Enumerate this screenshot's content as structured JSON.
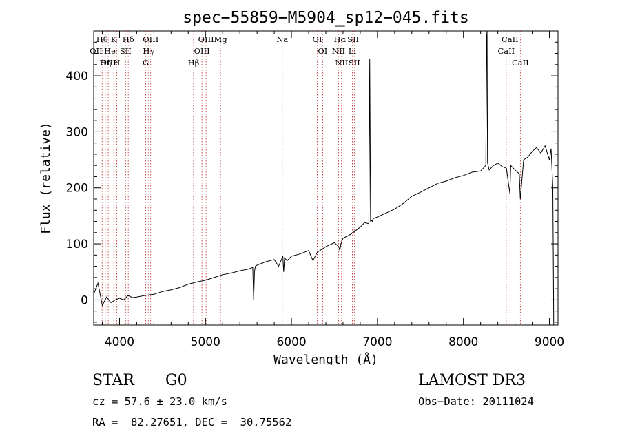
{
  "chart_data": {
    "type": "line",
    "title": "spec−55859−M5904_sp12−045.fits",
    "xlabel": "Wavelength (Å)",
    "ylabel": "Flux (relative)",
    "xlim": [
      3700,
      9100
    ],
    "ylim": [
      -45,
      480
    ],
    "x_ticks": [
      4000,
      5000,
      6000,
      7000,
      8000,
      9000
    ],
    "y_ticks": [
      0,
      100,
      200,
      300,
      400
    ],
    "series": [
      {
        "name": "flux",
        "x": [
          3700,
          3750,
          3800,
          3850,
          3900,
          3950,
          4000,
          4050,
          4100,
          4150,
          4200,
          4300,
          4400,
          4500,
          4600,
          4700,
          4800,
          4900,
          5000,
          5100,
          5200,
          5300,
          5400,
          5500,
          5550,
          5560,
          5570,
          5580,
          5600,
          5700,
          5800,
          5850,
          5900,
          5910,
          5920,
          5950,
          6000,
          6100,
          6200,
          6250,
          6300,
          6400,
          6500,
          6550,
          6563,
          6575,
          6600,
          6700,
          6800,
          6850,
          6900,
          6910,
          6920,
          6930,
          6940,
          6950,
          7000,
          7100,
          7200,
          7300,
          7400,
          7500,
          7600,
          7700,
          7800,
          7900,
          8000,
          8100,
          8200,
          8260,
          8270,
          8275,
          8280,
          8290,
          8300,
          8350,
          8400,
          8450,
          8500,
          8540,
          8550,
          8600,
          8650,
          8662,
          8700,
          8750,
          8800,
          8850,
          8900,
          8950,
          9000,
          9020,
          9040,
          9050
        ],
        "y": [
          10,
          30,
          -10,
          5,
          -5,
          0,
          3,
          0,
          8,
          4,
          5,
          8,
          10,
          15,
          18,
          22,
          28,
          32,
          35,
          40,
          45,
          48,
          52,
          55,
          58,
          0,
          50,
          60,
          62,
          68,
          72,
          60,
          78,
          50,
          75,
          70,
          78,
          82,
          88,
          70,
          85,
          95,
          102,
          95,
          88,
          100,
          110,
          118,
          130,
          138,
          136,
          430,
          140,
          142,
          140,
          145,
          148,
          155,
          162,
          172,
          185,
          192,
          200,
          208,
          212,
          218,
          222,
          228,
          230,
          240,
          470,
          480,
          245,
          238,
          232,
          240,
          244,
          238,
          235,
          190,
          240,
          232,
          225,
          180,
          250,
          255,
          265,
          272,
          262,
          275,
          250,
          270,
          200,
          -50
        ],
        "color": "#000000"
      }
    ],
    "spectral_lines": [
      {
        "label": "Hθ",
        "x": 3798
      },
      {
        "label": "OII",
        "x": 3727
      },
      {
        "label": "OIII",
        "x": 3869
      },
      {
        "label": "K",
        "x": 3934
      },
      {
        "label": "He",
        "x": 3889
      },
      {
        "label": "Hη",
        "x": 3835
      },
      {
        "label": "Hδ",
        "x": 4102
      },
      {
        "label": "SII",
        "x": 4071
      },
      {
        "label": "H",
        "x": 3968
      },
      {
        "label": "OIII",
        "x": 4363
      },
      {
        "label": "Hγ",
        "x": 4340
      },
      {
        "label": "G",
        "x": 4305
      },
      {
        "label": "OIII",
        "x": 5007
      },
      {
        "label": "OIII",
        "x": 4959
      },
      {
        "label": "Hβ",
        "x": 4861
      },
      {
        "label": "Mg",
        "x": 5175
      },
      {
        "label": "Na",
        "x": 5893
      },
      {
        "label": "OI",
        "x": 6300
      },
      {
        "label": "OI",
        "x": 6363
      },
      {
        "label": "Hα",
        "x": 6563
      },
      {
        "label": "NII",
        "x": 6548
      },
      {
        "label": "NII",
        "x": 6583
      },
      {
        "label": "SII",
        "x": 6717
      },
      {
        "label": "Li",
        "x": 6708
      },
      {
        "label": "SII",
        "x": 6731
      },
      {
        "label": "CaII",
        "x": 8542
      },
      {
        "label": "CaII",
        "x": 8498
      },
      {
        "label": "CaII",
        "x": 8662
      }
    ]
  },
  "info": {
    "object_class": "STAR",
    "subclass": "G0",
    "survey": "LAMOST DR3",
    "cz": "cz = 57.6 ± 23.0 km/s",
    "obs_date": "Obs−Date: 20111024",
    "coords": "RA =  82.27651, DEC =  30.75562"
  }
}
